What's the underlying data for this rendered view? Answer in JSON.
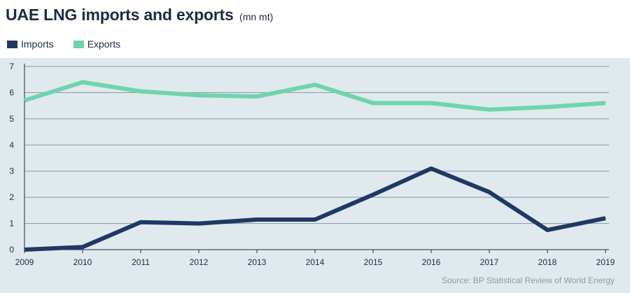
{
  "chart_data": {
    "type": "line",
    "title": "UAE LNG imports and exports",
    "unit": "(mn mt)",
    "x": [
      "2009",
      "2010",
      "2011",
      "2012",
      "2013",
      "2014",
      "2015",
      "2016",
      "2017",
      "2018",
      "2019"
    ],
    "series": [
      {
        "name": "Imports",
        "color": "#1f3864",
        "values": [
          0.0,
          0.1,
          1.05,
          1.0,
          1.15,
          1.15,
          2.1,
          3.1,
          2.2,
          0.75,
          1.2
        ]
      },
      {
        "name": "Exports",
        "color": "#6fd4ad",
        "values": [
          5.7,
          6.4,
          6.05,
          5.9,
          5.85,
          6.3,
          5.6,
          5.6,
          5.35,
          5.45,
          5.6
        ]
      }
    ],
    "yticks": [
      "0",
      "1",
      "2",
      "3",
      "4",
      "5",
      "6",
      "7"
    ],
    "ylim": [
      0,
      7
    ],
    "grid": true,
    "legend_position": "top-left",
    "source": "Source: BP Statistical Review of World Energy"
  }
}
